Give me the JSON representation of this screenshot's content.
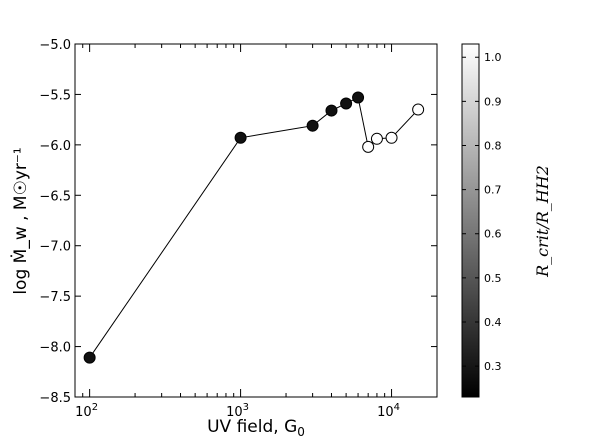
{
  "chart_data": {
    "type": "line",
    "title": "",
    "xlabel": "UV field, G",
    "xlabel_sub": "0",
    "ylabel": "log Ṁ_w , M☉yr⁻¹",
    "xscale": "log",
    "xlim": [
      80,
      20000
    ],
    "ylim": [
      -8.5,
      -5.0
    ],
    "x_ticks": [
      {
        "value": 100,
        "base": "10",
        "exp": "2"
      },
      {
        "value": 1000,
        "base": "10",
        "exp": "3"
      },
      {
        "value": 10000,
        "base": "10",
        "exp": "4"
      }
    ],
    "y_ticks": [
      "-5.0",
      "-5.5",
      "-6.0",
      "-6.5",
      "-7.0",
      "-7.5",
      "-8.0",
      "-8.5"
    ],
    "series": [
      {
        "points": [
          {
            "x": 100,
            "y": -8.11,
            "marker": "filled"
          },
          {
            "x": 1000,
            "y": -5.93,
            "marker": "filled"
          },
          {
            "x": 3000,
            "y": -5.81,
            "marker": "filled"
          },
          {
            "x": 4000,
            "y": -5.66,
            "marker": "filled"
          },
          {
            "x": 5000,
            "y": -5.59,
            "marker": "filled"
          },
          {
            "x": 6000,
            "y": -5.53,
            "marker": "filled"
          },
          {
            "x": 7000,
            "y": -6.02,
            "marker": "open"
          },
          {
            "x": 8000,
            "y": -5.94,
            "marker": "open"
          },
          {
            "x": 10000,
            "y": -5.93,
            "marker": "open"
          },
          {
            "x": 15000,
            "y": -5.65,
            "marker": "open"
          }
        ]
      }
    ],
    "colorbar": {
      "label": "R_crit/R_HH2",
      "range": [
        0.23,
        1.03
      ],
      "ticks": [
        "0.3",
        "0.4",
        "0.5",
        "0.6",
        "0.7",
        "0.8",
        "0.9",
        "1.0"
      ],
      "colormap": "gray"
    },
    "grid": false,
    "legend": "none",
    "colors": {
      "line": "#000000",
      "filled_marker": "#111111",
      "open_marker_fill": "#ffffff"
    }
  }
}
